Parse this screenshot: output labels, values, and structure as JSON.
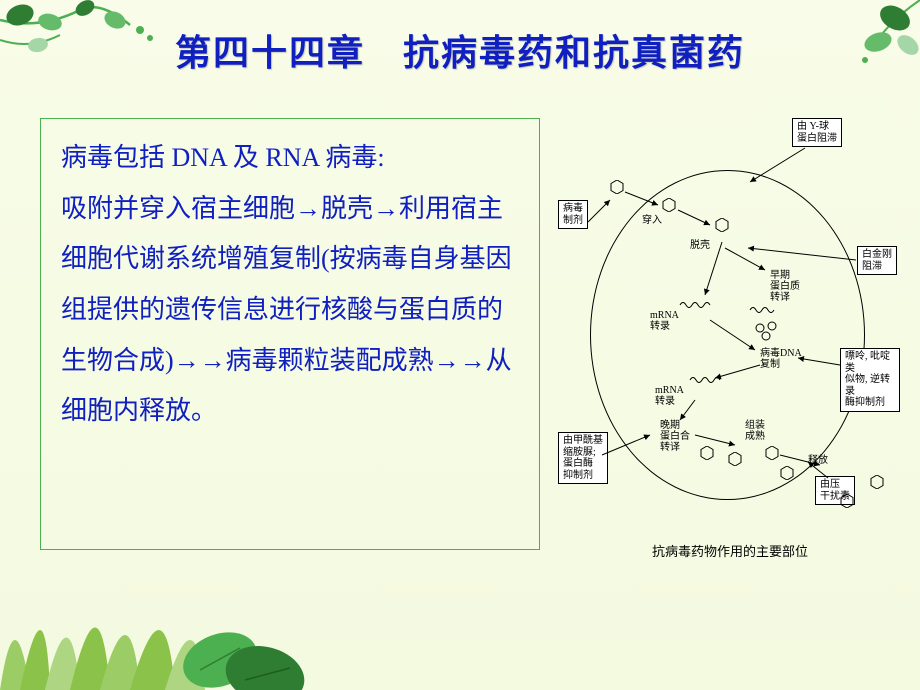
{
  "title": "第四十四章　抗病毒药和抗真菌药",
  "content": {
    "heading": "病毒包括 DNA 及 RNA 病毒:",
    "body": "吸附并穿入宿主细胞→脱壳→利用宿主细胞代谢系统增殖复制(按病毒自身基因组提供的遗传信息进行核酸与蛋白质的生物合成)→→病毒颗粒装配成熟→→从细胞内释放。"
  },
  "diagram": {
    "caption": "抗病毒药物作用的主要部位",
    "labels": {
      "top_drug": "由 Y-球\n蛋白阻滞",
      "left_drug": "病毒\n制剂",
      "right_drug1": "白金刚\n阻滞",
      "right_drug2": "嘌呤, 吡啶类\n似物, 逆转录\n酶抑制剂",
      "right_drug3": "由压\n干扰素",
      "left_drug2": "由甲酰基\n缩胺脲;\n蛋白酶\n抑制剂",
      "step_in": "穿入",
      "step_uncoat": "脱壳",
      "step_early": "早期\n蛋白质\n转译",
      "step_mrna2": "mRNA\n转录",
      "step_dna": "病毒DNA\n复制",
      "step_mrna1": "mRNA\n转录",
      "step_late": "晚期\n蛋白合\n转译",
      "step_assemble": "组装\n成熟",
      "step_release": "释放"
    },
    "style": {
      "cell_border_color": "#000000",
      "label_border_color": "#000000",
      "label_bg": "#ffffff",
      "label_fontsize": 10,
      "caption_fontsize": 13,
      "hex_size": 14
    }
  },
  "theme": {
    "title_color": "#1020c0",
    "title_fontsize": 36,
    "body_color": "#1020c0",
    "body_fontsize": 26,
    "box_border_color": "#4CAF50",
    "background_gradient": [
      "#f8fce8",
      "#f4fae0"
    ],
    "leaf_colors": [
      "#2e7d32",
      "#66bb6a",
      "#a5d6a7"
    ],
    "grass_color": "#8bc34a"
  }
}
